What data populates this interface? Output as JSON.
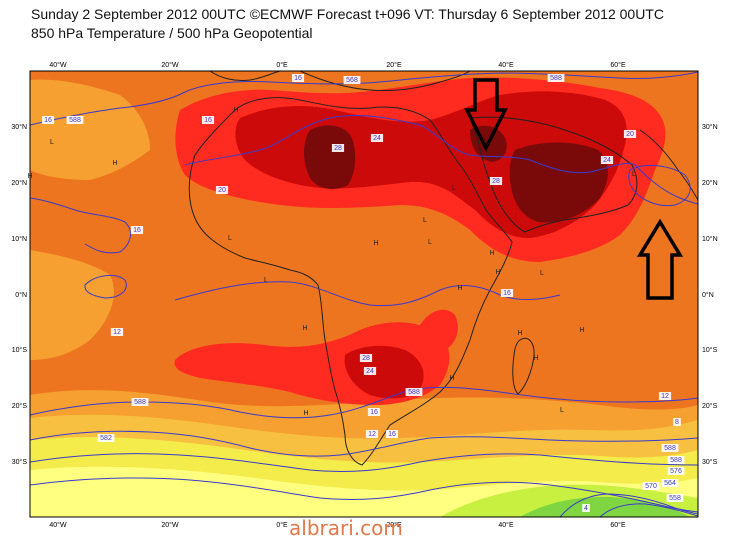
{
  "header": {
    "title_line1": "Sunday 2 September 2012 00UTC ©ECMWF Forecast t+096 VT: Thursday 6 September 2012 00UTC",
    "title_line2": "850 hPa Temperature / 500 hPa Geopotential"
  },
  "map": {
    "lon_ticks": [
      "40°W",
      "20°W",
      "0°E",
      "20°E",
      "40°E",
      "60°E"
    ],
    "lat_ticks": [
      "30°N",
      "20°N",
      "10°N",
      "0°N",
      "10°S",
      "20°S",
      "30°S"
    ],
    "contour_labels": [
      "16",
      "568",
      "588",
      "16",
      "20",
      "28",
      "24",
      "28",
      "24",
      "20",
      "16",
      "588",
      "16",
      "16",
      "12",
      "28",
      "24",
      "16",
      "588",
      "12",
      "16",
      "588",
      "582",
      "588",
      "12",
      "8",
      "588",
      "576",
      "564",
      "558",
      "570",
      "4"
    ],
    "pressure_markers": [
      "H",
      "H",
      "L",
      "H",
      "L",
      "L",
      "H",
      "H",
      "L",
      "L",
      "H",
      "H",
      "L",
      "H",
      "H",
      "L",
      "H",
      "H",
      "L",
      "H",
      "L",
      "H"
    ],
    "colors": {
      "temp_4": "#7fd640",
      "temp_8": "#c8f040",
      "temp_12": "#ffff80",
      "temp_14": "#f3ec4a",
      "temp_16": "#f8c040",
      "temp_18": "#f5a030",
      "temp_20": "#ee7520",
      "temp_24": "#ff2a20",
      "temp_28": "#cc0a0a",
      "temp_32": "#7a0a0a",
      "contour": "#3a3acc",
      "coast": "#222222",
      "arrow": "#000000"
    }
  },
  "watermark": "albrari.com"
}
